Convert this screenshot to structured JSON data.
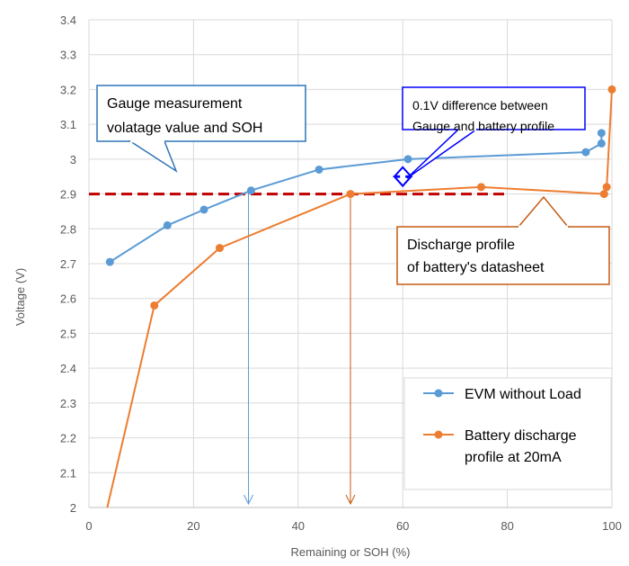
{
  "chart_data": {
    "type": "line",
    "title": "",
    "xlabel": "Remaining  or SOH (%)",
    "ylabel": "Voltage (V)",
    "xlim": [
      0,
      100
    ],
    "ylim": [
      2.0,
      3.4
    ],
    "x_ticks": [
      0,
      20,
      40,
      60,
      80,
      100
    ],
    "y_ticks": [
      2.0,
      2.1,
      2.2,
      2.3,
      2.4,
      2.5,
      2.6,
      2.7,
      2.8,
      2.9,
      3.0,
      3.1,
      3.2,
      3.3,
      3.4
    ],
    "x_tick_labels": [
      "0",
      "20",
      "40",
      "60",
      "80",
      "100"
    ],
    "y_tick_labels": [
      "2",
      "2.1",
      "2.2",
      "2.3",
      "2.4",
      "2.5",
      "2.6",
      "2.7",
      "2.8",
      "2.9",
      "3",
      "3.1",
      "3.2",
      "3.3",
      "3.4"
    ],
    "grid": true,
    "legend_position": "bottom-right",
    "series": [
      {
        "name": "EVM without Load",
        "color": "#5b9bd5",
        "x": [
          4,
          15,
          22,
          31,
          44,
          61,
          95,
          98,
          98
        ],
        "y": [
          2.705,
          2.81,
          2.855,
          2.91,
          2.97,
          3.0,
          3.02,
          3.045,
          3.075
        ]
      },
      {
        "name": "Battery discharge profile at 20mA",
        "color": "#ed7d31",
        "x": [
          3.5,
          12.5,
          25,
          50,
          75,
          98.5,
          99,
          100
        ],
        "y": [
          2.0,
          2.58,
          2.745,
          2.9,
          2.92,
          2.9,
          2.92,
          3.2
        ]
      }
    ],
    "reference_line": {
      "y": 2.9,
      "x_start": 0,
      "x_end": 80,
      "color": "#c00000",
      "style": "dashed"
    },
    "markers": [
      {
        "x": 30.5,
        "y_top": 2.91,
        "y_bottom": 2.0,
        "color": "#5b9bd5"
      },
      {
        "x": 50,
        "y_top": 2.9,
        "y_bottom": 2.0,
        "color": "#c55a11"
      }
    ],
    "difference_marker": {
      "x": 60,
      "y_top": 3.0,
      "y_bottom": 2.9,
      "color": "#0000ff"
    },
    "annotations": [
      {
        "lines": [
          "Gauge measurement",
          "volatage value and SOH"
        ],
        "border": "#2e75b6"
      },
      {
        "lines": [
          "0.1V difference between",
          "Gauge and battery profile"
        ],
        "border": "#0000ff"
      },
      {
        "lines": [
          "Discharge profile",
          "of battery's datasheet"
        ],
        "border": "#c55a11"
      }
    ]
  }
}
